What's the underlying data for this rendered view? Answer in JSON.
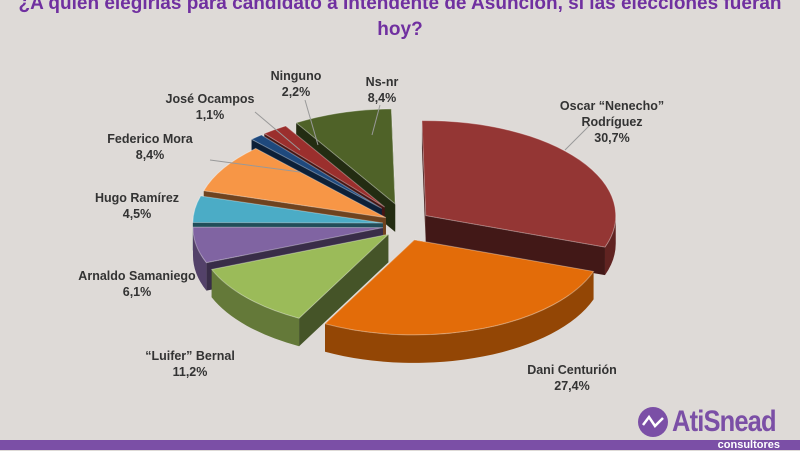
{
  "chart_data": {
    "type": "pie",
    "title": "¿A quién elegirías para candidato a Intendente de Asunción, si las elecciones fueran hoy?",
    "style": "3d-exploded",
    "slices": [
      {
        "label": "Oscar “Nenecho” Rodríguez",
        "value": 30.7,
        "display": "30,7%",
        "color": "#943634"
      },
      {
        "label": "Dani Centurión",
        "value": 27.4,
        "display": "27,4%",
        "color": "#e36c09"
      },
      {
        "label": "“Luifer” Bernal",
        "value": 11.2,
        "display": "11,2%",
        "color": "#9bbb59"
      },
      {
        "label": "Arnaldo Samaniego",
        "value": 6.1,
        "display": "6,1%",
        "color": "#8064a2"
      },
      {
        "label": "Hugo Ramírez",
        "value": 4.5,
        "display": "4,5%",
        "color": "#4bacc6"
      },
      {
        "label": "Federico Mora",
        "value": 8.4,
        "display": "8,4%",
        "color": "#f79646"
      },
      {
        "label": "José Ocampos",
        "value": 1.1,
        "display": "1,1%",
        "color": "#1f497d"
      },
      {
        "label": "Ninguno",
        "value": 2.2,
        "display": "2,2%",
        "color": "#9b2f2d"
      },
      {
        "label": "Ns-nr",
        "value": 8.4,
        "display": "8,4%",
        "color": "#4f6228"
      }
    ]
  },
  "logo": {
    "name": "AtiSnead",
    "sub": "consultores",
    "color": "#7b4fa6"
  }
}
